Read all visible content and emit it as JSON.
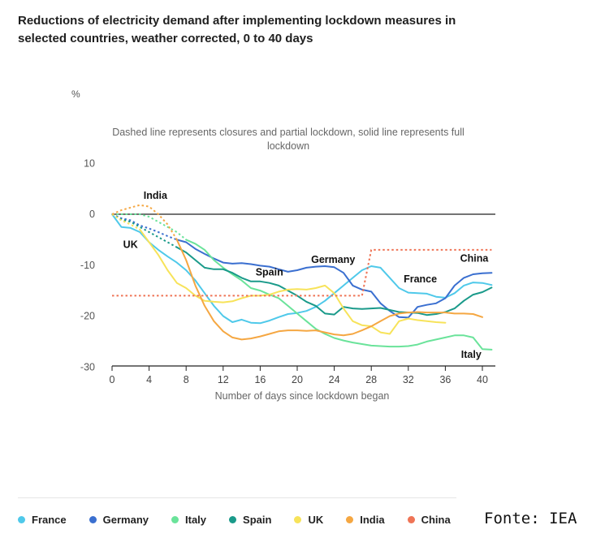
{
  "header": {
    "title": "Reductions of electricity demand after implementing lockdown measures in selected countries, weather corrected, 0 to 40 days",
    "unit": "%",
    "note": "Dashed line represents closures and partial lockdown, solid line represents full lockdown"
  },
  "source": "Fonte: IEA",
  "chart_data": {
    "type": "line",
    "title": "Reductions of electricity demand after implementing lockdown measures in selected countries, weather corrected, 0 to 40 days",
    "xlabel": "Number of days since lockdown began",
    "ylabel": "%",
    "xlim": [
      0,
      41
    ],
    "ylim": [
      -30,
      10
    ],
    "xticks": [
      "0",
      "4",
      "8",
      "12",
      "16",
      "20",
      "24",
      "28",
      "32",
      "36",
      "40"
    ],
    "yticks": [
      "10",
      "0",
      "-10",
      "-20",
      "-30"
    ],
    "series": [
      {
        "name": "France",
        "color": "#4fc9ea",
        "label": "France",
        "dashed": [],
        "solid": [
          [
            0,
            0
          ],
          [
            1,
            -2.5
          ],
          [
            2,
            -2.7
          ],
          [
            3,
            -3.5
          ],
          [
            4,
            -5.5
          ],
          [
            5,
            -7
          ],
          [
            6,
            -8.3
          ],
          [
            7,
            -9.5
          ],
          [
            8,
            -11
          ],
          [
            9,
            -13
          ],
          [
            10,
            -15.5
          ],
          [
            11,
            -18
          ],
          [
            12,
            -20
          ],
          [
            13,
            -21.2
          ],
          [
            14,
            -20.7
          ],
          [
            15,
            -21.3
          ],
          [
            16,
            -21.4
          ],
          [
            17,
            -20.9
          ],
          [
            18,
            -20.2
          ],
          [
            19,
            -19.6
          ],
          [
            20,
            -19.4
          ],
          [
            21,
            -19
          ],
          [
            22,
            -18.2
          ],
          [
            23,
            -17
          ],
          [
            24,
            -15.5
          ],
          [
            25,
            -14
          ],
          [
            26,
            -12.5
          ],
          [
            27,
            -11
          ],
          [
            28,
            -10.2
          ],
          [
            29,
            -10.5
          ],
          [
            30,
            -12.5
          ],
          [
            31,
            -14.5
          ],
          [
            32,
            -15.4
          ],
          [
            33,
            -15.5
          ],
          [
            34,
            -15.6
          ],
          [
            35,
            -16.2
          ],
          [
            36,
            -16.4
          ],
          [
            37,
            -15.5
          ],
          [
            38,
            -14
          ],
          [
            39,
            -13.4
          ],
          [
            40,
            -13.5
          ],
          [
            41,
            -13.9
          ]
        ]
      },
      {
        "name": "Germany",
        "color": "#3a6fd0",
        "label": "Germany",
        "dashed": [
          [
            0,
            0
          ],
          [
            1,
            -0.8
          ],
          [
            2,
            -1.2
          ],
          [
            3,
            -2.2
          ],
          [
            4,
            -2.8
          ],
          [
            5,
            -3.5
          ],
          [
            6,
            -4.3
          ],
          [
            7,
            -5
          ]
        ],
        "solid": [
          [
            7,
            -5
          ],
          [
            8,
            -5.5
          ],
          [
            9,
            -6.8
          ],
          [
            10,
            -7.8
          ],
          [
            11,
            -8.7
          ],
          [
            12,
            -9.5
          ],
          [
            13,
            -9.7
          ],
          [
            14,
            -9.6
          ],
          [
            15,
            -9.8
          ],
          [
            16,
            -10.1
          ],
          [
            17,
            -10.3
          ],
          [
            18,
            -10.8
          ],
          [
            19,
            -11.3
          ],
          [
            20,
            -11
          ],
          [
            21,
            -10.5
          ],
          [
            22,
            -10.3
          ],
          [
            23,
            -10.2
          ],
          [
            24,
            -10.4
          ],
          [
            25,
            -11.5
          ],
          [
            26,
            -14
          ],
          [
            27,
            -14.8
          ],
          [
            28,
            -15.2
          ],
          [
            29,
            -17.5
          ],
          [
            30,
            -19
          ],
          [
            31,
            -20.2
          ],
          [
            32,
            -20.3
          ],
          [
            33,
            -18.2
          ],
          [
            34,
            -17.8
          ],
          [
            35,
            -17.5
          ],
          [
            36,
            -16.5
          ],
          [
            37,
            -14
          ],
          [
            38,
            -12.5
          ],
          [
            39,
            -11.8
          ],
          [
            40,
            -11.6
          ],
          [
            41,
            -11.5
          ]
        ]
      },
      {
        "name": "Italy",
        "color": "#6ae39a",
        "label": "Italy",
        "dashed": [
          [
            0,
            0
          ],
          [
            3,
            0
          ],
          [
            4,
            -0.5
          ],
          [
            5,
            -1.5
          ],
          [
            6,
            -2.5
          ],
          [
            7,
            -3.5
          ],
          [
            8,
            -5
          ]
        ],
        "solid": [
          [
            8,
            -5
          ],
          [
            9,
            -5.8
          ],
          [
            10,
            -7
          ],
          [
            11,
            -9
          ],
          [
            12,
            -10.5
          ],
          [
            13,
            -11.8
          ],
          [
            14,
            -13
          ],
          [
            15,
            -14.5
          ],
          [
            16,
            -15
          ],
          [
            17,
            -15.8
          ],
          [
            18,
            -16.5
          ],
          [
            19,
            -18
          ],
          [
            20,
            -19.5
          ],
          [
            21,
            -21
          ],
          [
            22,
            -22.5
          ],
          [
            23,
            -23.5
          ],
          [
            24,
            -24.3
          ],
          [
            25,
            -24.8
          ],
          [
            26,
            -25.2
          ],
          [
            27,
            -25.5
          ],
          [
            28,
            -25.8
          ],
          [
            29,
            -25.9
          ],
          [
            30,
            -26
          ],
          [
            31,
            -26
          ],
          [
            32,
            -25.9
          ],
          [
            33,
            -25.6
          ],
          [
            34,
            -25
          ],
          [
            35,
            -24.6
          ],
          [
            36,
            -24.2
          ],
          [
            37,
            -23.8
          ],
          [
            38,
            -23.8
          ],
          [
            39,
            -24.2
          ],
          [
            40,
            -26.5
          ],
          [
            41,
            -26.6
          ]
        ]
      },
      {
        "name": "Spain",
        "color": "#1a9a8a",
        "label": "Spain",
        "dashed": [
          [
            0,
            0
          ],
          [
            1,
            -1
          ],
          [
            2,
            -1.5
          ],
          [
            3,
            -2.5
          ],
          [
            4,
            -3.5
          ],
          [
            5,
            -4.5
          ],
          [
            6,
            -5.5
          ],
          [
            7,
            -6.5
          ]
        ],
        "solid": [
          [
            7,
            -6.5
          ],
          [
            8,
            -7.5
          ],
          [
            9,
            -9
          ],
          [
            10,
            -10.5
          ],
          [
            11,
            -10.8
          ],
          [
            12,
            -10.8
          ],
          [
            13,
            -11.5
          ],
          [
            14,
            -12.5
          ],
          [
            15,
            -13.2
          ],
          [
            16,
            -13.2
          ],
          [
            17,
            -13.5
          ],
          [
            18,
            -14
          ],
          [
            19,
            -15
          ],
          [
            20,
            -16
          ],
          [
            21,
            -17.2
          ],
          [
            22,
            -18
          ],
          [
            23,
            -19.5
          ],
          [
            24,
            -19.7
          ],
          [
            25,
            -18.2
          ],
          [
            26,
            -18.5
          ],
          [
            27,
            -18.6
          ],
          [
            28,
            -18.5
          ],
          [
            29,
            -18.4
          ],
          [
            30,
            -18.8
          ],
          [
            31,
            -19.2
          ],
          [
            32,
            -19.3
          ],
          [
            33,
            -19.4
          ],
          [
            34,
            -19.8
          ],
          [
            35,
            -19.6
          ],
          [
            36,
            -19.2
          ],
          [
            37,
            -18.5
          ],
          [
            38,
            -17
          ],
          [
            39,
            -15.8
          ],
          [
            40,
            -15.3
          ],
          [
            41,
            -14.4
          ]
        ]
      },
      {
        "name": "UK",
        "color": "#f7e35a",
        "label": "UK",
        "dashed": [
          [
            0,
            0
          ],
          [
            1,
            -1.2
          ],
          [
            2,
            -2
          ],
          [
            3,
            -3
          ]
        ],
        "solid": [
          [
            3,
            -3
          ],
          [
            4,
            -5.5
          ],
          [
            5,
            -8
          ],
          [
            6,
            -11
          ],
          [
            7,
            -13.5
          ],
          [
            8,
            -14.5
          ],
          [
            9,
            -16
          ],
          [
            10,
            -17
          ],
          [
            11,
            -17.2
          ],
          [
            12,
            -17.3
          ],
          [
            13,
            -17.1
          ],
          [
            14,
            -16.5
          ],
          [
            15,
            -16
          ],
          [
            16,
            -16
          ],
          [
            17,
            -15.8
          ],
          [
            18,
            -15.2
          ],
          [
            19,
            -14.8
          ],
          [
            20,
            -14.7
          ],
          [
            21,
            -14.8
          ],
          [
            22,
            -14.5
          ],
          [
            23,
            -14
          ],
          [
            24,
            -15.5
          ],
          [
            25,
            -18.5
          ],
          [
            26,
            -21
          ],
          [
            27,
            -21.8
          ],
          [
            28,
            -22
          ],
          [
            29,
            -23.2
          ],
          [
            30,
            -23.5
          ],
          [
            31,
            -21
          ],
          [
            32,
            -20.5
          ],
          [
            33,
            -20.8
          ],
          [
            34,
            -21
          ],
          [
            35,
            -21.2
          ],
          [
            36,
            -21.3
          ]
        ]
      },
      {
        "name": "India",
        "color": "#f5a742",
        "label": "India",
        "dashed": [
          [
            0,
            0
          ],
          [
            1,
            0.8
          ],
          [
            2,
            1.3
          ],
          [
            3,
            1.8
          ],
          [
            4,
            1.5
          ],
          [
            5,
            0
          ],
          [
            6,
            -2
          ],
          [
            7,
            -5
          ]
        ],
        "solid": [
          [
            7,
            -5
          ],
          [
            8,
            -9
          ],
          [
            9,
            -14
          ],
          [
            10,
            -18
          ],
          [
            11,
            -21
          ],
          [
            12,
            -23
          ],
          [
            13,
            -24.2
          ],
          [
            14,
            -24.6
          ],
          [
            15,
            -24.4
          ],
          [
            16,
            -24
          ],
          [
            17,
            -23.5
          ],
          [
            18,
            -23
          ],
          [
            19,
            -22.8
          ],
          [
            20,
            -22.8
          ],
          [
            21,
            -22.9
          ],
          [
            22,
            -22.8
          ],
          [
            23,
            -23.2
          ],
          [
            24,
            -23.6
          ],
          [
            25,
            -23.8
          ],
          [
            26,
            -23.5
          ],
          [
            27,
            -22.8
          ],
          [
            28,
            -22
          ],
          [
            29,
            -21
          ],
          [
            30,
            -20
          ],
          [
            31,
            -19.5
          ],
          [
            32,
            -19.3
          ],
          [
            33,
            -19.2
          ],
          [
            34,
            -19.3
          ],
          [
            35,
            -19.3
          ],
          [
            36,
            -19.3
          ],
          [
            37,
            -19.5
          ],
          [
            38,
            -19.5
          ],
          [
            39,
            -19.6
          ],
          [
            40,
            -20.2
          ]
        ]
      },
      {
        "name": "China",
        "color": "#ef7456",
        "label": "China",
        "dashed": [
          [
            0,
            -16
          ],
          [
            27,
            -16
          ],
          [
            28,
            -7
          ],
          [
            41,
            -7
          ]
        ],
        "solid": []
      }
    ]
  }
}
